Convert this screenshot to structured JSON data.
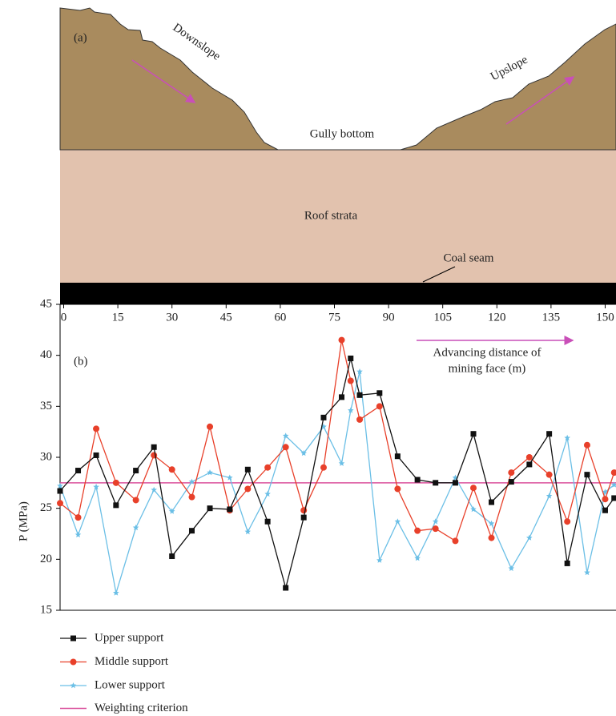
{
  "diagram": {
    "panel_label": "(a)",
    "downslope": "Downslope",
    "upslope": "Upslope",
    "gully": "Gully bottom",
    "roof": "Roof strata",
    "coal": "Coal seam"
  },
  "chart_data": {
    "type": "line",
    "panel_label": "(b)",
    "annotation": [
      "Advancing distance of",
      "mining face (m)"
    ],
    "y_label": "P (MPa)",
    "x": [
      -1,
      4,
      9,
      14.5,
      20,
      25,
      30,
      35.5,
      40.5,
      46,
      51,
      56.5,
      61.5,
      66.5,
      72,
      77,
      79.5,
      82,
      87.5,
      92.5,
      98,
      103,
      108.5,
      113.5,
      118.5,
      124,
      129,
      134.5,
      139.5,
      145,
      150,
      152.5
    ],
    "series": [
      {
        "name": "Upper support",
        "color": "#111111",
        "marker": "square",
        "values": [
          26.7,
          28.7,
          30.2,
          25.3,
          28.7,
          31.0,
          20.3,
          22.8,
          25.0,
          24.9,
          28.8,
          23.7,
          17.2,
          24.1,
          33.9,
          35.9,
          39.7,
          36.1,
          36.3,
          30.1,
          27.8,
          27.5,
          27.5,
          32.3,
          25.6,
          27.6,
          29.3,
          32.3,
          19.6,
          28.3,
          24.8,
          26.0
        ]
      },
      {
        "name": "Middle support",
        "color": "#e8402a",
        "marker": "circle",
        "values": [
          25.5,
          24.1,
          32.8,
          27.5,
          25.8,
          30.2,
          28.8,
          26.1,
          33.0,
          24.8,
          26.9,
          29.0,
          31.0,
          24.8,
          29.0,
          41.5,
          37.5,
          33.7,
          35.0,
          26.9,
          22.8,
          23.0,
          21.8,
          27.0,
          22.1,
          28.5,
          30.0,
          28.3,
          23.7,
          31.2,
          25.9,
          28.5
        ]
      },
      {
        "name": "Lower support",
        "color": "#6bbfe6",
        "marker": "star",
        "values": [
          27.2,
          22.4,
          27.1,
          16.7,
          23.1,
          26.8,
          24.7,
          27.6,
          28.5,
          28.0,
          22.7,
          26.4,
          32.1,
          30.4,
          33.0,
          29.4,
          34.6,
          38.4,
          19.9,
          23.7,
          20.1,
          23.7,
          28.0,
          24.9,
          23.5,
          19.1,
          22.1,
          26.2,
          31.9,
          18.7,
          26.6,
          27.3
        ]
      }
    ],
    "criterion": {
      "name": "Weighting criterion",
      "value": 27.5,
      "color": "#d94f9b"
    },
    "xlim": [
      -1,
      153
    ],
    "xticks": [
      0,
      15,
      30,
      45,
      60,
      75,
      90,
      105,
      120,
      135,
      150
    ],
    "ylim": [
      15,
      45
    ],
    "yticks": [
      15,
      20,
      25,
      30,
      35,
      40,
      45
    ]
  }
}
